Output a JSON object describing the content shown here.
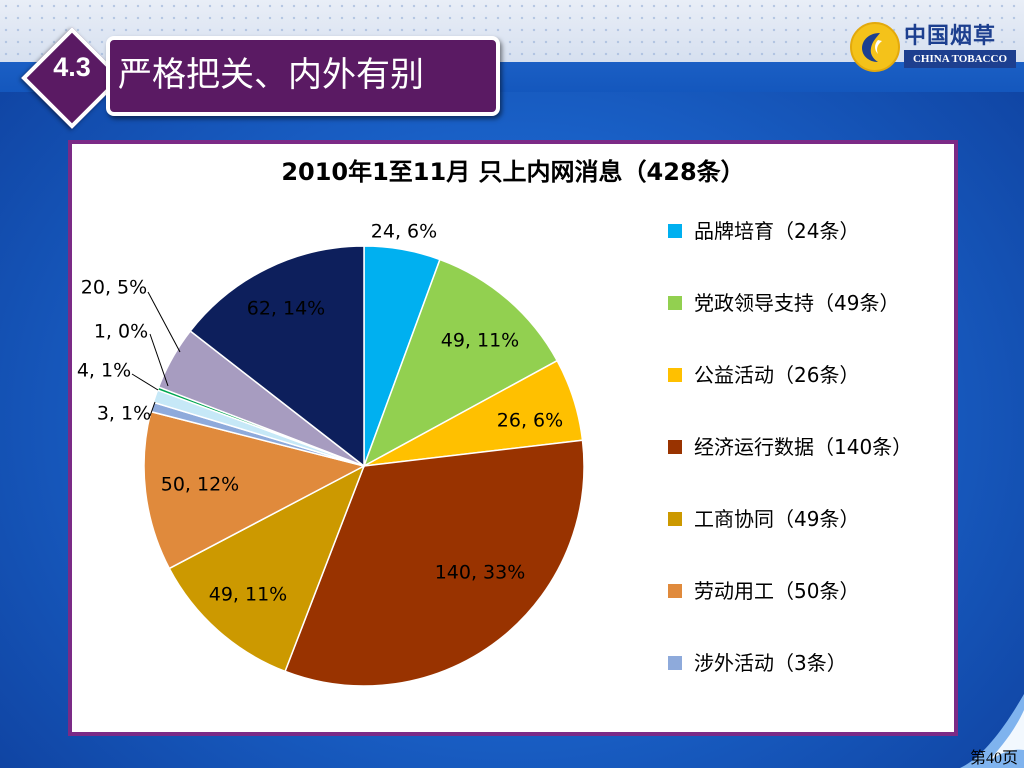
{
  "slide": {
    "section_number": "4.3",
    "title": "严格把关、内外有别",
    "page_label": "第40页"
  },
  "logo": {
    "name_cn": "中国烟草",
    "name_en": "CHINA TOBACCO"
  },
  "colors": {
    "background": "#1565c8",
    "title_box": "#5a1a63",
    "frame_border": "#7b2a86",
    "logo_yellow": "#f4c21a",
    "logo_blue": "#1d3f8f"
  },
  "chart_data": {
    "type": "pie",
    "title": "2010年1至11月 只上内网消息（428条）",
    "start_angle_deg": 0,
    "direction": "clockwise",
    "legend_position": "right",
    "slices": [
      {
        "name": "品牌培育（24条）",
        "value": 24,
        "data_label": "24, 6%",
        "color": "#00b0f0",
        "label_inside": false
      },
      {
        "name": "党政领导支持（49条）",
        "value": 49,
        "data_label": "49, 11%",
        "color": "#92d050",
        "label_inside": true
      },
      {
        "name": "公益活动（26条）",
        "value": 26,
        "data_label": "26, 6%",
        "color": "#ffc000",
        "label_inside": true
      },
      {
        "name": "经济运行数据（140条）",
        "value": 140,
        "data_label": "140, 33%",
        "color": "#993300",
        "label_inside": true
      },
      {
        "name": "工商协同（49条）",
        "value": 49,
        "data_label": "49, 11%",
        "color": "#cc9900",
        "label_inside": true
      },
      {
        "name": "劳动用工（50条）",
        "value": 50,
        "data_label": "50, 12%",
        "color": "#e08a3c",
        "label_inside": true
      },
      {
        "name": "涉外活动（3条）",
        "value": 3,
        "data_label": "3, 1%",
        "color": "#8eaadb",
        "label_inside": false
      },
      {
        "name": "",
        "value": 4,
        "data_label": "4, 1%",
        "color": "#c6e8f7",
        "label_inside": false
      },
      {
        "name": "",
        "value": 1,
        "data_label": "1, 0%",
        "color": "#00a651",
        "label_inside": false
      },
      {
        "name": "",
        "value": 20,
        "data_label": "20, 5%",
        "color": "#a79cc0",
        "label_inside": false
      },
      {
        "name": "",
        "value": 62,
        "data_label": "62, 14%",
        "color": "#0d1f5c",
        "label_inside": true
      }
    ]
  }
}
